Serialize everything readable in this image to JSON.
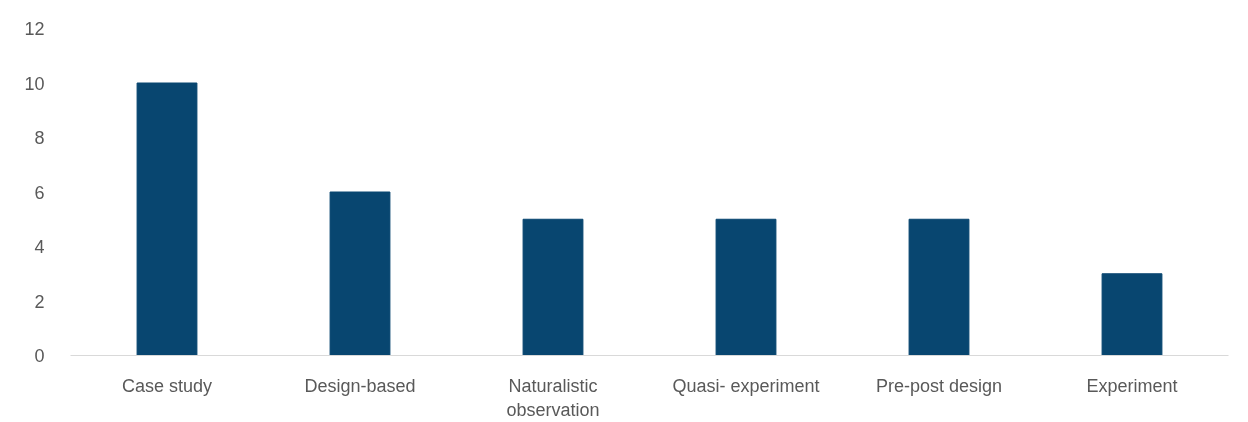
{
  "chart_data": {
    "type": "bar",
    "categories": [
      "Case study",
      "Design-based",
      "Naturalistic observation",
      "Quasi- experiment",
      "Pre-post design",
      "Experiment"
    ],
    "values": [
      10,
      6,
      5,
      5,
      5,
      3
    ],
    "color": "#084670",
    "ylim": [
      0,
      12
    ],
    "yticks": [
      0,
      2,
      4,
      6,
      8,
      10,
      12
    ],
    "grid": false
  }
}
